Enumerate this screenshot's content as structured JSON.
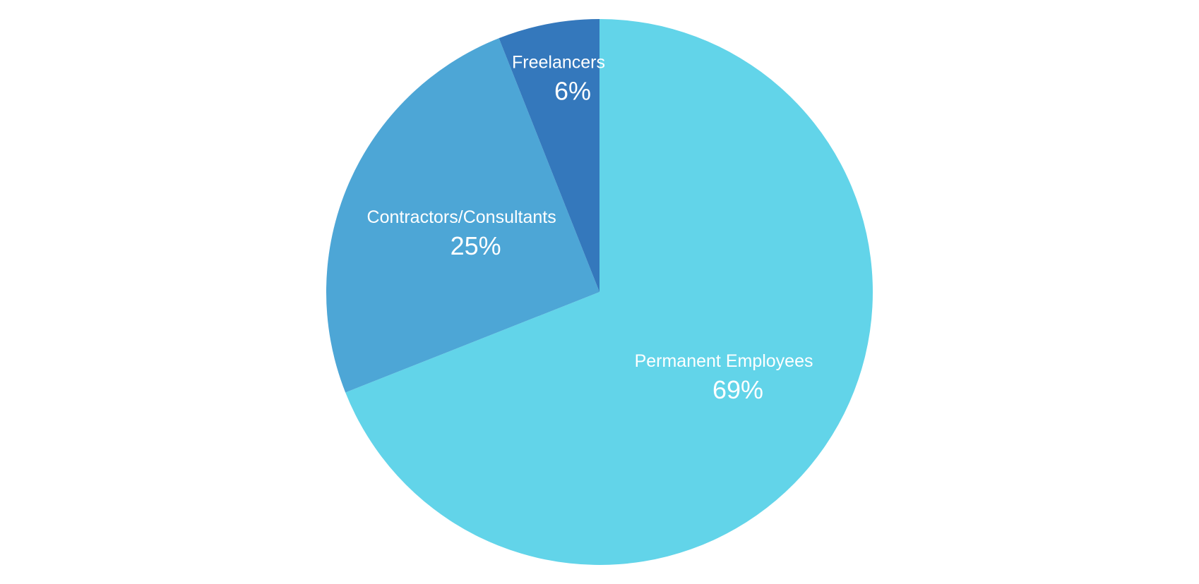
{
  "chart_data": {
    "type": "pie",
    "categories": [
      "Permanent Employees",
      "Contractors/Consultants",
      "Freelancers"
    ],
    "values": [
      69,
      25,
      6
    ],
    "value_labels": [
      "69%",
      "25%",
      "6%"
    ],
    "colors": [
      "#62d4e9",
      "#4da6d6",
      "#3478bc"
    ],
    "start_angle": 0,
    "direction": "clockwise"
  }
}
